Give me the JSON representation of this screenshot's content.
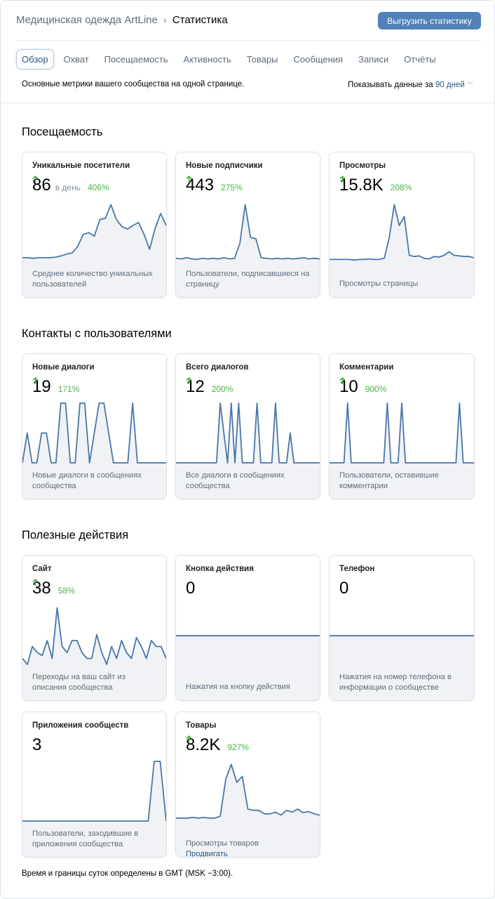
{
  "header": {
    "breadcrumb": "Медицинская одежда ArtLine",
    "page": "Статистика",
    "export_button": "Выгрузить статистику"
  },
  "tabs": {
    "items": [
      "Обзор",
      "Охват",
      "Посещаемость",
      "Активность",
      "Товары",
      "Сообщения",
      "Записи",
      "Отчёты"
    ],
    "active": 0
  },
  "subheader": {
    "description": "Основные метрики вашего сообщества на одной странице.",
    "period_label": "Показывать данные за",
    "period_value": "90 дней"
  },
  "sections": [
    {
      "title": "Посещаемость",
      "cards": [
        {
          "title": "Уникальные посетители",
          "value": "86",
          "unit": "в день",
          "change": "406%",
          "description": "Среднее количество уникальных пользователей",
          "spark": [
            6,
            6,
            5,
            6,
            6,
            6,
            7,
            9,
            12,
            14,
            25,
            45,
            48,
            42,
            70,
            72,
            95,
            70,
            58,
            54,
            60,
            65,
            45,
            20,
            55,
            80,
            60
          ]
        },
        {
          "title": "Новые подписчики",
          "value": "443",
          "change": "275%",
          "description": "Пользователи, подписавшиеся на страницу",
          "spark": [
            5,
            4,
            6,
            4,
            3,
            5,
            4,
            5,
            4,
            6,
            4,
            5,
            30,
            95,
            40,
            38,
            6,
            5,
            4,
            5,
            4,
            5,
            4,
            5,
            6,
            4,
            5,
            4
          ]
        },
        {
          "title": "Просмотры",
          "value": "15.8K",
          "change": "208%",
          "description": "Просмотры страницы",
          "spark": [
            3,
            3,
            3,
            3,
            3,
            2,
            3,
            3,
            4,
            3,
            3,
            5,
            40,
            95,
            60,
            75,
            10,
            8,
            9,
            5,
            4,
            8,
            7,
            10,
            16,
            10,
            9,
            8,
            8,
            6
          ]
        }
      ]
    },
    {
      "title": "Контакты с пользователями",
      "cards": [
        {
          "title": "Новые диалоги",
          "value": "19",
          "change": "171%",
          "description": "Новые диалоги в сообщениях сообщества",
          "spark": [
            0,
            50,
            0,
            0,
            50,
            50,
            0,
            0,
            100,
            100,
            0,
            0,
            100,
            100,
            0,
            50,
            100,
            100,
            50,
            0,
            0,
            0,
            0,
            100,
            0,
            0,
            0,
            0,
            0,
            0,
            0
          ]
        },
        {
          "title": "Всего диалогов",
          "value": "12",
          "change": "200%",
          "description": "Все диалоги в сообщениях сообщества",
          "spark": [
            0,
            0,
            0,
            0,
            0,
            0,
            0,
            0,
            0,
            0,
            0,
            0,
            100,
            50,
            0,
            100,
            0,
            100,
            0,
            0,
            0,
            0,
            100,
            0,
            0,
            0,
            0,
            100,
            0,
            0,
            0,
            50,
            0,
            0,
            0,
            0,
            0,
            0,
            0,
            0
          ]
        },
        {
          "title": "Комментарии",
          "value": "10",
          "change": "900%",
          "description": "Пользователи, оставившие комментарии",
          "spark": [
            0,
            0,
            0,
            0,
            0,
            100,
            0,
            0,
            0,
            0,
            0,
            0,
            0,
            0,
            0,
            0,
            100,
            0,
            0,
            0,
            100,
            0,
            0,
            0,
            0,
            0,
            0,
            0,
            0,
            0,
            0,
            0,
            0,
            0,
            0,
            0,
            100,
            0,
            0,
            0,
            0
          ]
        }
      ]
    },
    {
      "title": "Полезные действия",
      "cards": [
        {
          "title": "Сайт",
          "value": "38",
          "change": "58%",
          "description": "Переходы на ваш сайт из описания сообщества",
          "spark": [
            10,
            0,
            30,
            20,
            15,
            40,
            10,
            95,
            30,
            20,
            40,
            40,
            20,
            10,
            10,
            50,
            20,
            0,
            30,
            10,
            40,
            20,
            10,
            45,
            30,
            10,
            40,
            30,
            30,
            10
          ]
        },
        {
          "title": "Кнопка действия",
          "value": "0",
          "description": "Нажатия на кнопку действия",
          "spark": [
            48,
            48
          ]
        },
        {
          "title": "Телефон",
          "value": "0",
          "description": "Нажатия на номер телефона в информации о сообществе",
          "spark": [
            48,
            48
          ]
        },
        {
          "title": "Приложения сообществ",
          "value": "3",
          "description": "Пользователи, заходившие в приложения сообщества",
          "spark": [
            0,
            0,
            0,
            0,
            0,
            0,
            0,
            0,
            0,
            0,
            0,
            0,
            0,
            0,
            0,
            0,
            0,
            0,
            0,
            0,
            0,
            0,
            100,
            100,
            0
          ]
        },
        {
          "title": "Товары",
          "value": "8.2K",
          "change": "927%",
          "description": "Просмотры товаров",
          "link": "Продвигать",
          "spark": [
            5,
            5,
            5,
            6,
            5,
            6,
            5,
            5,
            8,
            70,
            95,
            65,
            75,
            20,
            18,
            18,
            12,
            12,
            15,
            10,
            18,
            15,
            20,
            14,
            16,
            12,
            10
          ]
        }
      ]
    }
  ],
  "footer": "Время и границы суток определены в GMT (MSK −3:00)."
}
